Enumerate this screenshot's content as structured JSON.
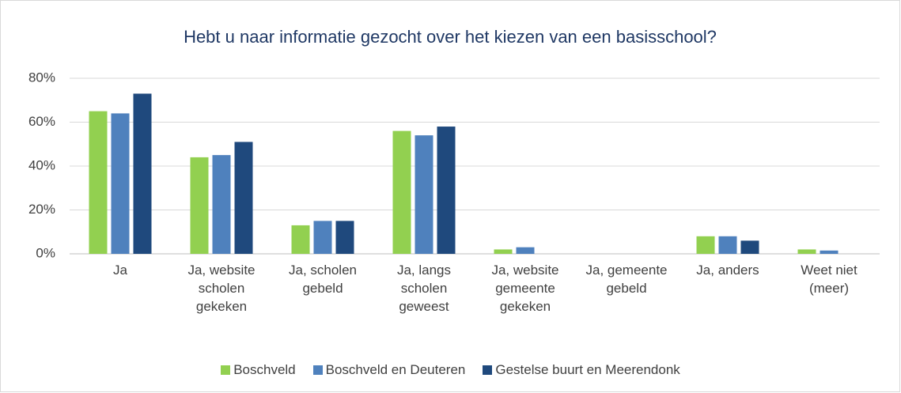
{
  "chart_data": {
    "type": "bar",
    "title": "Hebt u naar informatie gezocht over het kiezen van een basisschool?",
    "categories": [
      "Ja",
      "Ja, website scholen gekeken",
      "Ja, scholen gebeld",
      "Ja, langs scholen geweest",
      "Ja, website gemeente gekeken",
      "Ja, gemeente gebeld",
      "Ja, anders",
      "Weet niet (meer)"
    ],
    "series": [
      {
        "name": "Boschveld",
        "color": "#92d050",
        "values": [
          65,
          44,
          13,
          56,
          2,
          0,
          8,
          2
        ]
      },
      {
        "name": "Boschveld en Deuteren",
        "color": "#4f81bd",
        "values": [
          64,
          45,
          15,
          54,
          3,
          0,
          8,
          1.5
        ]
      },
      {
        "name": "Gestelse buurt en Meerendonk",
        "color": "#1f497d",
        "values": [
          73,
          51,
          15,
          58,
          0,
          0,
          6,
          0
        ]
      }
    ],
    "ylim": [
      0,
      80
    ],
    "yticks": [
      {
        "value": 0,
        "label": "0%"
      },
      {
        "value": 20,
        "label": "20%"
      },
      {
        "value": 40,
        "label": "40%"
      },
      {
        "value": 60,
        "label": "60%"
      },
      {
        "value": 80,
        "label": "80%"
      }
    ],
    "grid": true,
    "legend": "bottom"
  }
}
